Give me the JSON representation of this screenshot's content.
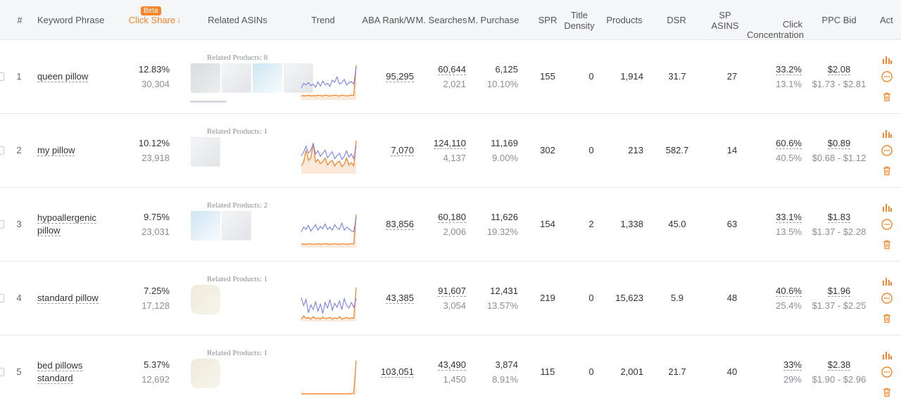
{
  "colors": {
    "accent": "#f5862b",
    "line_blue": "#6f73f0",
    "line_orange": "#f5862b"
  },
  "columns": {
    "num": "#",
    "keyword": "Keyword Phrase",
    "click_share": "Click Share",
    "beta": "Beta",
    "related": "Related ASINs",
    "trend": "Trend",
    "aba": "ABA Rank/W",
    "searches": "M. Searches",
    "purchase": "M. Purchase",
    "spr": "SPR",
    "title_density_1": "Title",
    "title_density_2": "Density",
    "products": "Products",
    "dsr": "DSR",
    "sp_asins_1": "SP",
    "sp_asins_2": "ASINS",
    "click_conc_1": "Click",
    "click_conc_2": "Concentration",
    "ppc": "PPC Bid",
    "actions": "Act"
  },
  "rows": [
    {
      "index": "1",
      "keyword_line1": "queen pillow",
      "keyword_line2": "",
      "click_share": "12.83%",
      "click_share_sub": "30,304",
      "related_label": "Related Products: 8",
      "thumbs": [
        "grey",
        "light",
        "blue",
        "light"
      ],
      "aba_rank": "95,295",
      "searches": "60,644",
      "searches_sub": "2,021",
      "purchase": "6,125",
      "purchase_sub": "10.10%",
      "spr": "155",
      "title_density": "0",
      "products": "1,914",
      "dsr": "31.7",
      "sp_asins": "27",
      "click_conc": "33.2%",
      "click_conc_sub": "13.1%",
      "ppc": "$2.08",
      "ppc_range": "$1.73 - $2.81",
      "trend_blue": [
        30,
        42,
        38,
        44,
        36,
        40,
        32,
        46,
        35,
        48,
        38,
        42,
        34,
        50,
        45,
        58,
        40,
        44,
        52,
        38,
        44,
        46,
        40,
        84
      ],
      "trend_orange": [
        10,
        11,
        10,
        12,
        10,
        11,
        10,
        12,
        11,
        10,
        12,
        11,
        10,
        11,
        12,
        11,
        10,
        12,
        11,
        10,
        11,
        12,
        11,
        88
      ]
    },
    {
      "index": "2",
      "keyword_line1": "my pillow",
      "keyword_line2": "",
      "click_share": "10.12%",
      "click_share_sub": "23,918",
      "related_label": "Related Products: 1",
      "thumbs": [
        "light"
      ],
      "aba_rank": "7,070",
      "searches": "124,110",
      "searches_sub": "4,137",
      "purchase": "11,169",
      "purchase_sub": "9.00%",
      "spr": "302",
      "title_density": "0",
      "products": "213",
      "dsr": "582.7",
      "sp_asins": "14",
      "click_conc": "60.6%",
      "click_conc_sub": "40.5%",
      "ppc": "$0.89",
      "ppc_range": "$0.68 - $1.12",
      "trend_blue": [
        45,
        55,
        70,
        52,
        60,
        76,
        50,
        58,
        44,
        52,
        60,
        40,
        48,
        56,
        38,
        46,
        52,
        36,
        44,
        58,
        42,
        50,
        38,
        72
      ],
      "trend_orange": [
        20,
        30,
        60,
        34,
        40,
        78,
        30,
        36,
        26,
        30,
        40,
        22,
        30,
        34,
        20,
        28,
        32,
        18,
        24,
        40,
        22,
        28,
        20,
        84
      ]
    },
    {
      "index": "3",
      "keyword_line1": "hypoallergenic",
      "keyword_line2": "pillow",
      "click_share": "9.75%",
      "click_share_sub": "23,031",
      "related_label": "Related Products: 2",
      "thumbs": [
        "blue",
        "light"
      ],
      "aba_rank": "83,856",
      "searches": "60,180",
      "searches_sub": "2,006",
      "purchase": "11,626",
      "purchase_sub": "19.32%",
      "spr": "154",
      "title_density": "2",
      "products": "1,338",
      "dsr": "45.0",
      "sp_asins": "63",
      "click_conc": "33.1%",
      "click_conc_sub": "13.5%",
      "ppc": "$1.83",
      "ppc_range": "$1.37 - $2.28",
      "trend_blue": [
        40,
        52,
        46,
        56,
        42,
        50,
        58,
        44,
        54,
        48,
        60,
        46,
        52,
        44,
        58,
        50,
        46,
        62,
        44,
        52,
        48,
        42,
        40,
        78
      ],
      "trend_orange": [
        8,
        9,
        8,
        10,
        9,
        8,
        9,
        10,
        8,
        9,
        10,
        9,
        8,
        9,
        10,
        9,
        8,
        10,
        9,
        8,
        9,
        10,
        9,
        84
      ]
    },
    {
      "index": "4",
      "keyword_line1": "standard pillow",
      "keyword_line2": "",
      "click_share": "7.25%",
      "click_share_sub": "17,128",
      "related_label": "Related Products: 1",
      "thumbs": [
        "cream"
      ],
      "aba_rank": "43,385",
      "searches": "91,607",
      "searches_sub": "3,054",
      "purchase": "12,431",
      "purchase_sub": "13.57%",
      "spr": "219",
      "title_density": "0",
      "products": "15,623",
      "dsr": "5.9",
      "sp_asins": "48",
      "click_conc": "40.6%",
      "click_conc_sub": "25.4%",
      "ppc": "$1.96",
      "ppc_range": "$1.37 - $2.25",
      "trend_blue": [
        60,
        40,
        56,
        22,
        42,
        30,
        50,
        26,
        44,
        20,
        48,
        34,
        56,
        28,
        46,
        36,
        52,
        30,
        58,
        40,
        34,
        48,
        36,
        58
      ],
      "trend_orange": [
        6,
        14,
        8,
        10,
        6,
        12,
        7,
        9,
        6,
        11,
        7,
        8,
        10,
        6,
        9,
        7,
        12,
        6,
        8,
        10,
        7,
        9,
        8,
        86
      ]
    },
    {
      "index": "5",
      "keyword_line1": "bed pillows",
      "keyword_line2": "standard",
      "click_share": "5.37%",
      "click_share_sub": "12,692",
      "related_label": "Related Products: 1",
      "thumbs": [
        "cream"
      ],
      "aba_rank": "103,051",
      "searches": "43,490",
      "searches_sub": "1,450",
      "purchase": "3,874",
      "purchase_sub": "8.91%",
      "spr": "115",
      "title_density": "0",
      "products": "2,001",
      "dsr": "21.7",
      "sp_asins": "40",
      "click_conc": "33%",
      "click_conc_sub": "29%",
      "ppc": "$2.38",
      "ppc_range": "$1.90 - $2.96",
      "trend_blue": [],
      "trend_orange": [
        4,
        4,
        4,
        4,
        4,
        4,
        4,
        4,
        4,
        4,
        4,
        4,
        4,
        4,
        4,
        4,
        4,
        4,
        4,
        4,
        4,
        4,
        6,
        88
      ]
    }
  ]
}
